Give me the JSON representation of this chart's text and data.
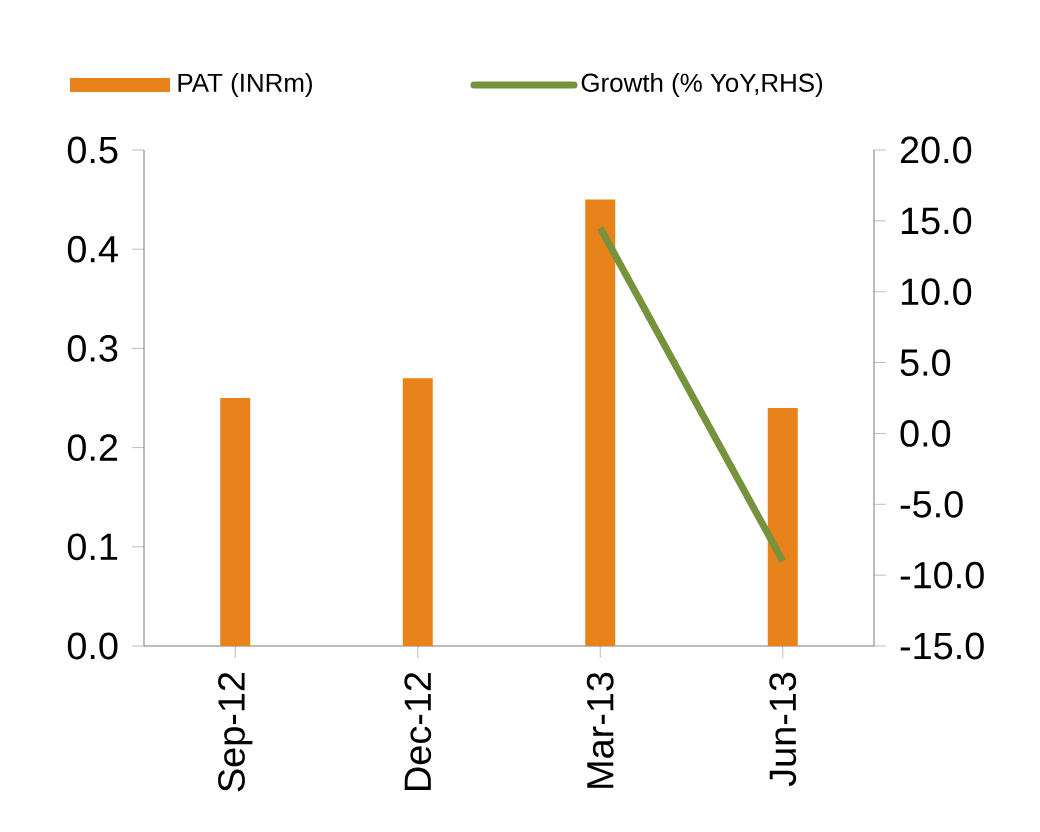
{
  "chart_data": {
    "type": "bar",
    "categories": [
      "Sep-12",
      "Dec-12",
      "Mar-13",
      "Jun-13"
    ],
    "series": [
      {
        "name": "PAT (INRm)",
        "color": "#e8821a",
        "values": [
          0.25,
          0.27,
          0.45,
          0.24
        ]
      },
      {
        "name": "Growth (% YoY,RHS)",
        "type": "line",
        "axis": "y2",
        "color": "#76923c",
        "values": [
          null,
          null,
          14.5,
          -9.0
        ]
      }
    ],
    "ylim": [
      0,
      0.5
    ],
    "yticks": [
      {
        "value": 0,
        "label": "0.0"
      },
      {
        "value": 0.1,
        "label": "0.1"
      },
      {
        "value": 0.2,
        "label": "0.2"
      },
      {
        "value": 0.3,
        "label": "0.3"
      },
      {
        "value": 0.4,
        "label": "0.4"
      },
      {
        "value": 0.5,
        "label": "0.5"
      }
    ],
    "y2lim": [
      -15,
      20
    ],
    "y2ticks": [
      {
        "value": -15,
        "label": "-15.0"
      },
      {
        "value": -10,
        "label": "-10.0"
      },
      {
        "value": -5,
        "label": "-5.0"
      },
      {
        "value": 0,
        "label": "0.0"
      },
      {
        "value": 5,
        "label": "5.0"
      },
      {
        "value": 10,
        "label": "10.0"
      },
      {
        "value": 15,
        "label": "15.0"
      },
      {
        "value": 20,
        "label": "20.0"
      }
    ],
    "legend": "top"
  }
}
